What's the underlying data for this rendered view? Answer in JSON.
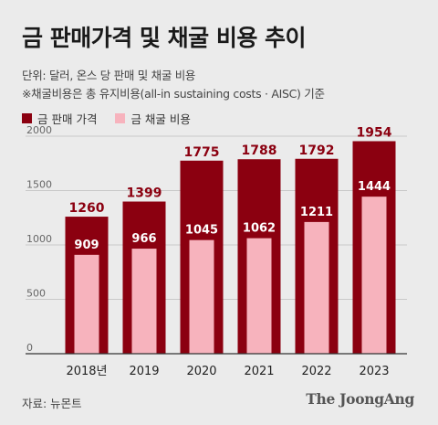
{
  "title": "금 판매가격 및 채굴 비용 추이",
  "subtitle_1": "단위: 달러, 온스 당 판매 및 채굴 비용",
  "subtitle_2": "※채굴비용은 총 유지비용(all-in sustaining costs · AISC) 기준",
  "source": "자료: 뉴몬트",
  "brand": "The JoongAng",
  "colors": {
    "sale": "#8b0010",
    "cost": "#f7b3bd",
    "cost_label": "#ffffff",
    "sale_label": "#8b0010"
  },
  "chart_data": {
    "type": "bar",
    "categories": [
      "2018년",
      "2019",
      "2020",
      "2021",
      "2022",
      "2023"
    ],
    "series": [
      {
        "name": "금 판매 가격",
        "values": [
          1260,
          1399,
          1775,
          1788,
          1792,
          1954
        ]
      },
      {
        "name": "금 채굴 비용",
        "values": [
          909,
          966,
          1045,
          1062,
          1211,
          1444
        ]
      }
    ],
    "yticks": [
      0,
      500,
      1000,
      1500,
      2000
    ],
    "ylim": [
      0,
      2000
    ],
    "grid": true,
    "legend": "top-left"
  }
}
